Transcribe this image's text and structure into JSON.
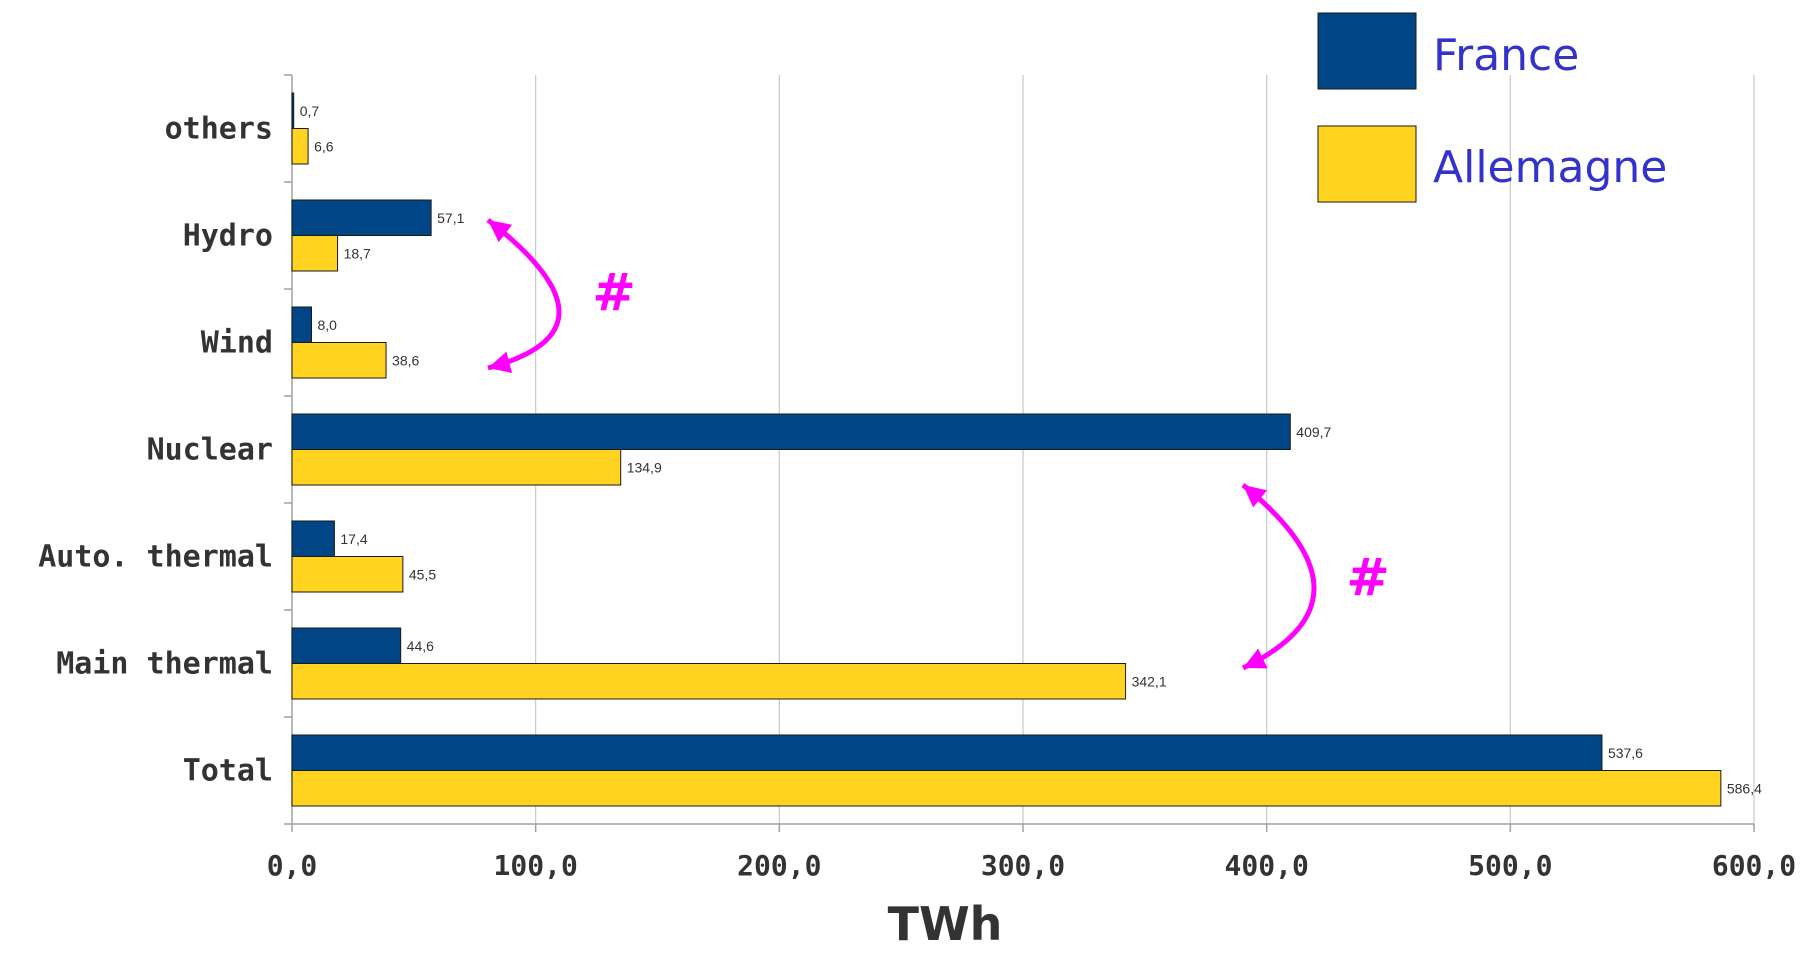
{
  "colors": {
    "france": "#004586",
    "allemagne": "#ffd320",
    "annotation": "#ff00ff",
    "legend_text": "#3333cc"
  },
  "chart_data": {
    "type": "bar",
    "orientation": "horizontal",
    "title": "",
    "xlabel": "TWh",
    "ylabel": "",
    "xlim": [
      0,
      600
    ],
    "x_ticks": [
      "0,0",
      "100,0",
      "200,0",
      "300,0",
      "400,0",
      "500,0",
      "600,0"
    ],
    "grid": true,
    "legend_position": "top-right",
    "categories": [
      "others",
      "Hydro",
      "Wind",
      "Nuclear",
      "Auto. thermal",
      "Main thermal",
      "Total"
    ],
    "series": [
      {
        "name": "France",
        "values": [
          0.7,
          57.1,
          8.0,
          409.7,
          17.4,
          44.6,
          537.6
        ],
        "labels": [
          "0,7",
          "57,1",
          "8,0",
          "409,7",
          "17,4",
          "44,6",
          "537,6"
        ]
      },
      {
        "name": "Allemagne",
        "values": [
          6.6,
          18.7,
          38.6,
          134.9,
          45.5,
          342.1,
          586.4
        ],
        "labels": [
          "6,6",
          "18,7",
          "38,6",
          "134,9",
          "45,5",
          "342,1",
          "586,4"
        ]
      }
    ],
    "annotations": [
      {
        "text": "#",
        "between": [
          "Hydro",
          "Wind"
        ]
      },
      {
        "text": "#",
        "between": [
          "Nuclear",
          "Main thermal"
        ]
      }
    ]
  }
}
